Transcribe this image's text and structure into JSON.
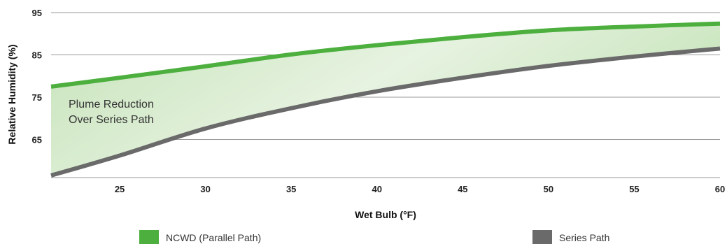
{
  "chart_data": {
    "type": "line",
    "title": "",
    "xlabel": "Wet Bulb (°F)",
    "ylabel": "Relative Humidity (%)",
    "xlim": [
      21,
      60
    ],
    "ylim": [
      56,
      95
    ],
    "xticks": [
      25,
      30,
      35,
      40,
      45,
      50,
      55,
      60
    ],
    "yticks": [
      65,
      75,
      85,
      95
    ],
    "grid": "horizontal",
    "legend_position": "bottom",
    "annotation": [
      "Plume Reduction",
      "Over Series Path"
    ],
    "series": [
      {
        "name": "NCWD (Parallel Path)",
        "color": "#4caf3e",
        "x": [
          21,
          25,
          30,
          35,
          40,
          45,
          50,
          55,
          60
        ],
        "values": [
          77.5,
          79.6,
          82.3,
          85.1,
          87.3,
          89.2,
          90.8,
          91.7,
          92.4
        ]
      },
      {
        "name": "Series Path",
        "color": "#6a6a6a",
        "x": [
          21,
          25,
          30,
          35,
          40,
          45,
          50,
          55,
          60
        ],
        "values": [
          56.5,
          61.2,
          67.6,
          72.4,
          76.4,
          79.6,
          82.4,
          84.6,
          86.5
        ]
      }
    ],
    "fill_between": {
      "color": "#cfe8c4"
    }
  }
}
